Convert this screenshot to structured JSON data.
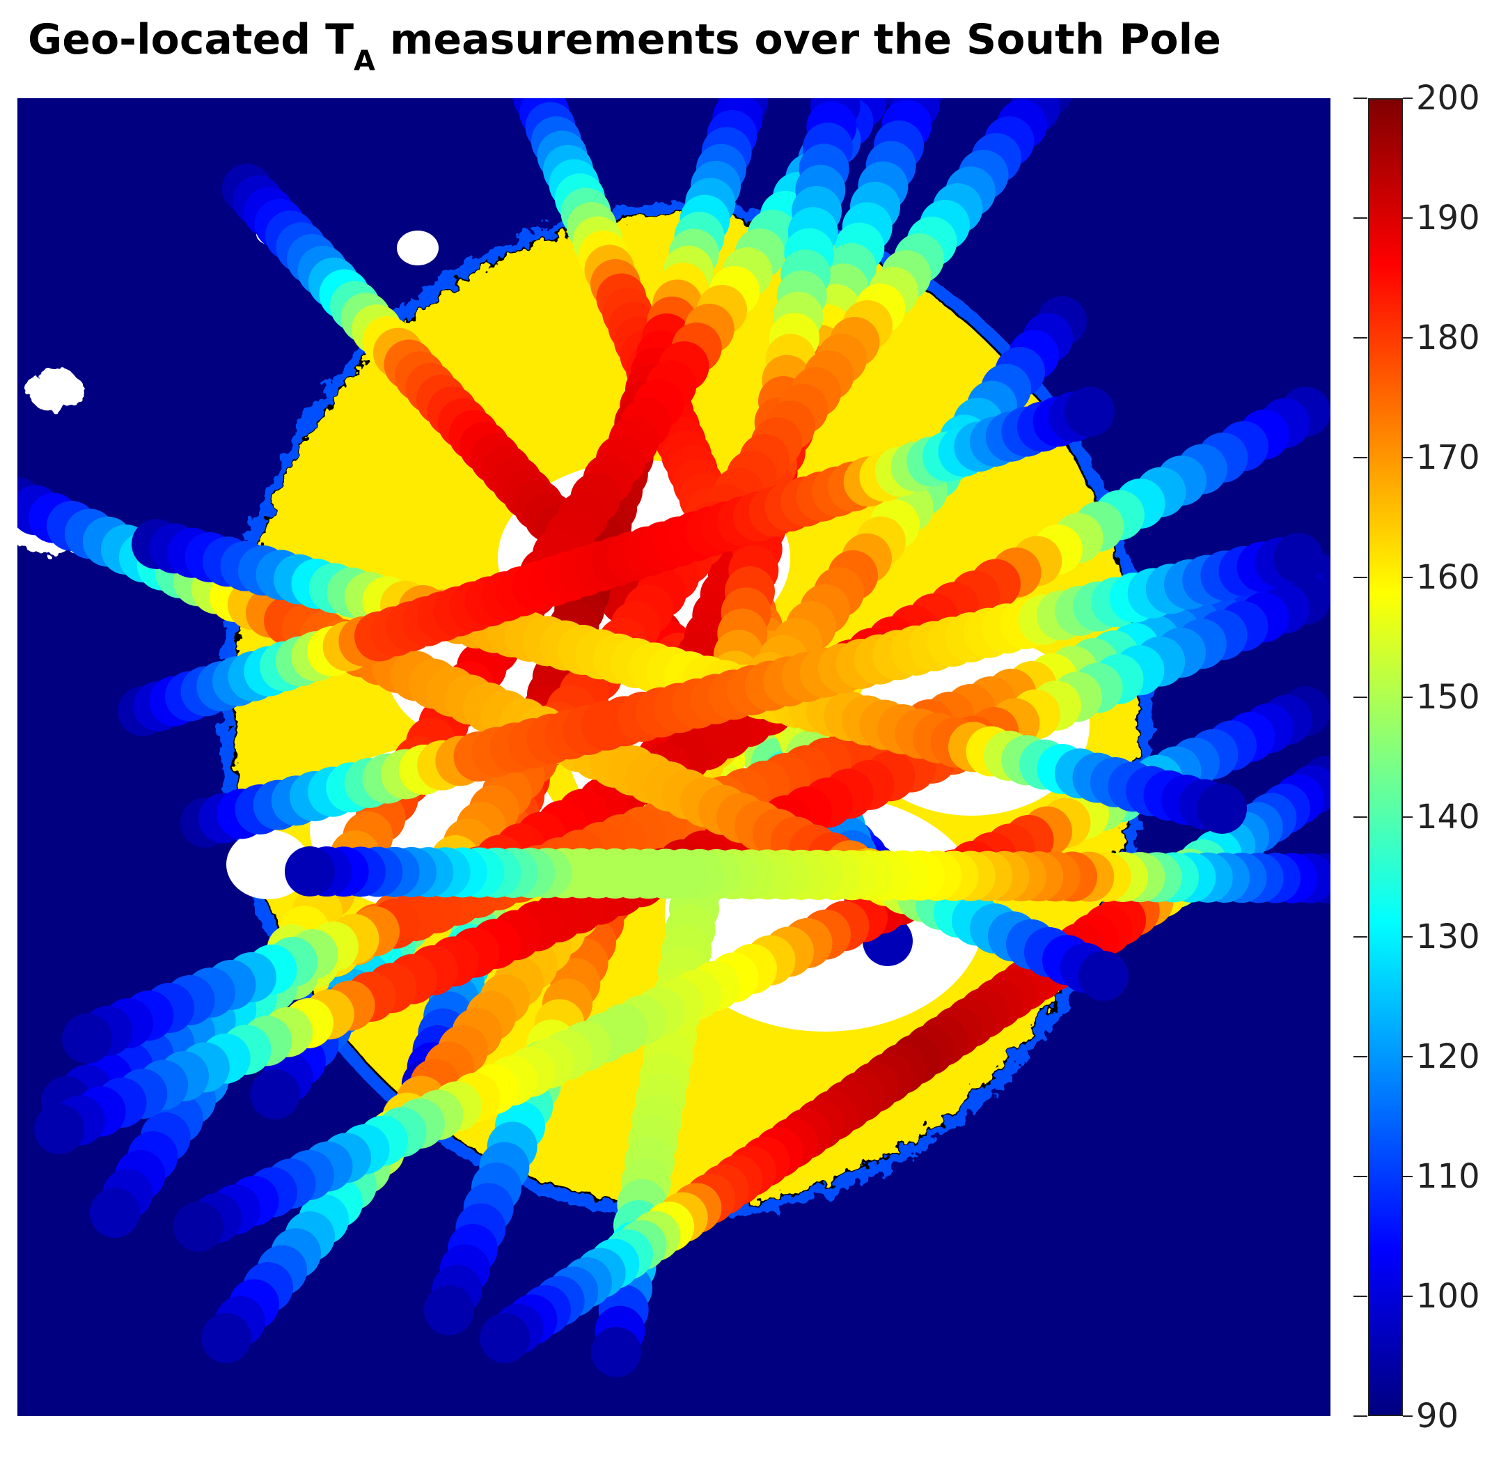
{
  "title": {
    "main": "Geo-located T",
    "subscript": "A",
    "rest": " measurements over the South Pole"
  },
  "chart_data": {
    "type": "scatter",
    "title": "Geo-located T_A measurements over the South Pole",
    "background_map": {
      "ice_sheet_color": "#ffeb00",
      "ocean_color": "#000080",
      "missing_color": "#ffffff",
      "coast_outline_color": "#000000"
    },
    "colorbar": {
      "colormap": "jet",
      "clim": [
        90,
        200
      ],
      "ticks": [
        90,
        100,
        110,
        120,
        130,
        140,
        150,
        160,
        170,
        180,
        190,
        200
      ],
      "orientation": "vertical",
      "position": "right"
    },
    "colormap_stops": [
      "#000080",
      "#0000ff",
      "#0080ff",
      "#00ffff",
      "#80ff80",
      "#ffff00",
      "#ff8000",
      "#ff0000",
      "#800000"
    ],
    "series": [
      {
        "values": [
          95,
          120,
          175,
          188,
          192,
          190,
          170,
          120,
          95
        ]
      },
      {
        "values": [
          96,
          130,
          180,
          186,
          182,
          175,
          160,
          120,
          96
        ]
      },
      {
        "values": [
          94,
          125,
          185,
          192,
          195,
          190,
          175,
          125,
          95
        ]
      },
      {
        "values": [
          95,
          130,
          180,
          188,
          190,
          185,
          170,
          120,
          95
        ]
      },
      {
        "values": [
          96,
          135,
          185,
          190,
          188,
          180,
          160,
          120,
          96
        ]
      },
      {
        "values": [
          95,
          130,
          175,
          185,
          160,
          150,
          155,
          150,
          95
        ]
      },
      {
        "values": [
          94,
          125,
          170,
          180,
          185,
          180,
          170,
          130,
          95
        ]
      },
      {
        "values": [
          95,
          130,
          175,
          165,
          160,
          165,
          175,
          130,
          95
        ]
      },
      {
        "values": [
          96,
          125,
          180,
          188,
          190,
          185,
          175,
          125,
          95
        ]
      },
      {
        "values": [
          95,
          120,
          170,
          180,
          175,
          178,
          180,
          120,
          95
        ]
      },
      {
        "values": [
          95,
          125,
          175,
          185,
          190,
          188,
          180,
          125,
          95
        ]
      },
      {
        "values": [
          94,
          120,
          180,
          190,
          160,
          150,
          160,
          120,
          94
        ]
      },
      {
        "values": [
          95,
          125,
          185,
          190,
          195,
          190,
          180,
          125,
          95
        ]
      },
      {
        "values": [
          95,
          130,
          178,
          170,
          165,
          168,
          180,
          130,
          95
        ]
      },
      {
        "values": [
          96,
          125,
          175,
          160,
          155,
          150,
          150,
          125,
          96
        ]
      },
      {
        "values": [
          95,
          120,
          170,
          165,
          160,
          165,
          175,
          120,
          95
        ]
      },
      {
        "values": [
          95,
          125,
          180,
          185,
          188,
          185,
          175,
          125,
          95
        ]
      },
      {
        "values": [
          94,
          130,
          175,
          180,
          175,
          165,
          160,
          125,
          95
        ]
      }
    ]
  }
}
